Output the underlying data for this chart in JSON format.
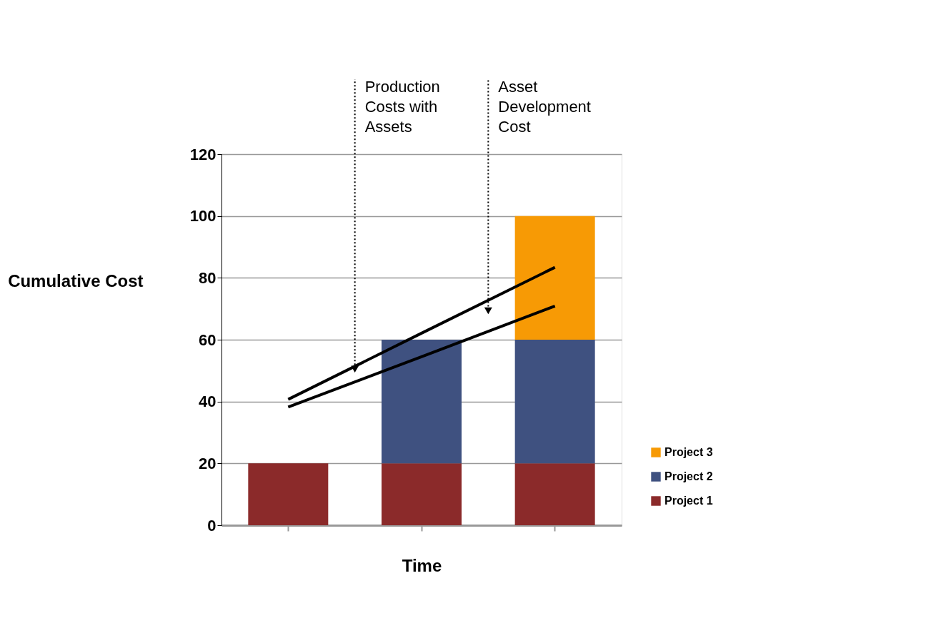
{
  "chart_data": {
    "type": "bar",
    "stacked": true,
    "categories": [
      null,
      null,
      null
    ],
    "xlabel": "Time",
    "ylabel": "Cumulative Cost",
    "ylim": [
      0,
      120
    ],
    "yticks": [
      0,
      20,
      40,
      60,
      80,
      100,
      120
    ],
    "grid": "y",
    "legend": "bottom right",
    "series": [
      {
        "name": "Project 1",
        "color": "#8b2a2a",
        "values": [
          20,
          20,
          20
        ]
      },
      {
        "name": "Project 2",
        "color": "#3f5180",
        "values": [
          null,
          40,
          40
        ]
      },
      {
        "name": "Project 3",
        "color": "#f79a05",
        "values": [
          null,
          null,
          40
        ]
      },
      {
        "type": "line",
        "color": "#000000",
        "values": [
          40.7,
          62.1,
          83.4
        ]
      },
      {
        "type": "line",
        "color": "#000000",
        "values": [
          38.2,
          54.5,
          70.9
        ]
      }
    ],
    "annotations": [
      "Production Costs with Assets",
      "Asset Development Cost"
    ]
  }
}
